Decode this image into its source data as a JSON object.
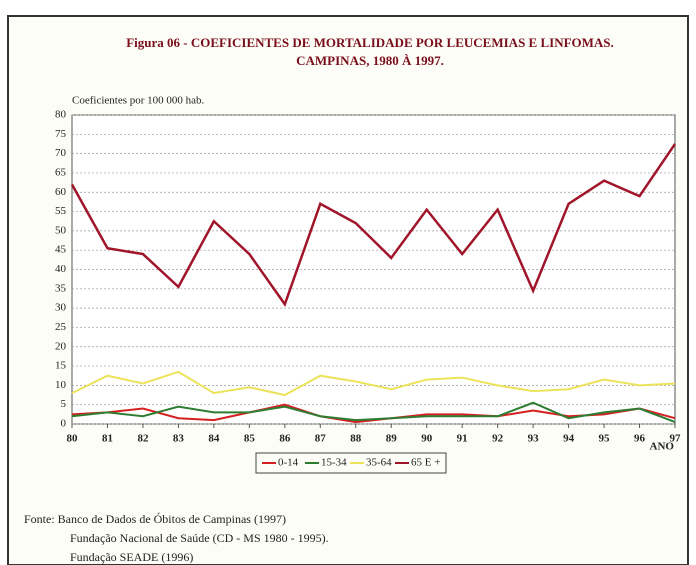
{
  "chart_data": {
    "type": "line",
    "title": "Figura 06 - COEFICIENTES DE MORTALIDADE POR LEUCEMIAS E LINFOMAS.",
    "subtitle": "CAMPINAS, 1980 À 1997.",
    "y_label": "Coeficientes por 100 000 hab.",
    "x_label": "ANO",
    "categories": [
      "80",
      "81",
      "82",
      "83",
      "84",
      "85",
      "86",
      "87",
      "88",
      "89",
      "90",
      "91",
      "92",
      "93",
      "94",
      "95",
      "96",
      "97"
    ],
    "series": [
      {
        "name": "0-14",
        "color": "#d42020",
        "values": [
          2.5,
          3,
          4,
          1.5,
          1,
          3,
          5,
          2,
          0.5,
          1.5,
          2.5,
          2.5,
          2,
          3.5,
          2,
          2.5,
          4,
          1.5
        ]
      },
      {
        "name": "15-34",
        "color": "#2e7d32",
        "values": [
          2,
          3,
          2,
          4.5,
          3,
          3,
          4.5,
          2,
          1,
          1.5,
          2,
          2,
          2,
          5.5,
          1.5,
          3,
          4,
          0.5
        ]
      },
      {
        "name": "35-64",
        "color": "#ece35a",
        "values": [
          8,
          12.5,
          10.5,
          13.5,
          8,
          9.5,
          7.5,
          12.5,
          11,
          9,
          11.5,
          12,
          10,
          8.5,
          9,
          11.5,
          10,
          10.5
        ]
      },
      {
        "name": "65 E +",
        "color": "#a0152a",
        "values": [
          62,
          45.5,
          44,
          35.5,
          52.5,
          44,
          31,
          57,
          52,
          43,
          55.5,
          44,
          55.5,
          34.5,
          57,
          63,
          59,
          72.5
        ]
      }
    ],
    "ylim": [
      0,
      80
    ],
    "yticks": [
      0,
      5,
      10,
      15,
      20,
      25,
      30,
      35,
      40,
      45,
      50,
      55,
      60,
      65,
      70,
      75,
      80
    ],
    "grid": true,
    "source": [
      "Fonte: Banco de Dados de Óbitos de Campinas (1997)",
      "Fundação Nacional de Saúde (CD - MS 1980 - 1995).",
      "Fundação SEADE (1996)"
    ]
  }
}
